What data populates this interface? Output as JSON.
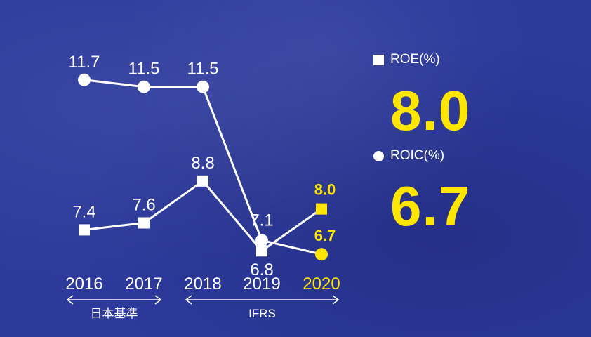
{
  "chart_data": {
    "type": "line",
    "categories": [
      "2016",
      "2017",
      "2018",
      "2019",
      "2020"
    ],
    "highlight_category": "2020",
    "ylim": [
      6,
      12.5
    ],
    "series": [
      {
        "name": "ROE(%)",
        "marker": "square",
        "values": [
          7.4,
          7.6,
          8.8,
          6.8,
          8.0
        ],
        "labels": [
          "7.4",
          "7.6",
          "8.8",
          "6.8",
          "8.0"
        ]
      },
      {
        "name": "ROIC(%)",
        "marker": "circle",
        "values": [
          11.7,
          11.5,
          11.5,
          7.1,
          6.7
        ],
        "labels": [
          "11.7",
          "11.5",
          "11.5",
          "7.1",
          "6.7"
        ]
      }
    ],
    "standards": [
      {
        "label": "日本基準",
        "from": "2016",
        "to": "2017"
      },
      {
        "label": "IFRS",
        "from": "2018",
        "to": "2020"
      }
    ]
  },
  "legend": {
    "roe_label": "ROE(%)",
    "roe_value": "8.0",
    "roic_label": "ROIC(%)",
    "roic_value": "6.7"
  },
  "colors": {
    "background": "#2d3a9c",
    "line": "#ffffff",
    "highlight": "#ffe600"
  }
}
